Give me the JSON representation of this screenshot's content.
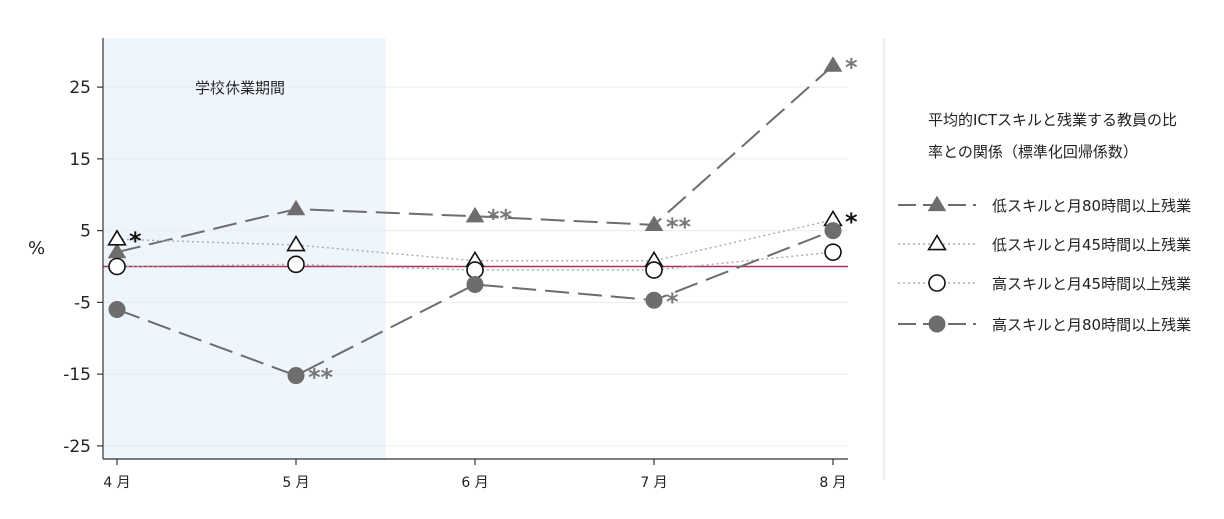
{
  "chart_data": {
    "type": "line",
    "ylabel": "%",
    "ylim": [
      -28,
      32
    ],
    "yticks": [
      -25,
      -15,
      -5,
      5,
      15,
      25
    ],
    "categories": [
      "4 月",
      "5 月",
      "6 月",
      "7 月",
      "8 月"
    ],
    "grid": true,
    "legend_position": "right",
    "legend_title_lines": [
      "平均的ICTスキルと残業する教員の比",
      "率との関係（標準化回帰係数）"
    ],
    "shaded_region": {
      "label": "学校休業期間",
      "x_start": -0.08,
      "x_end": 1.5,
      "color": "#eef5fc"
    },
    "reference_line": {
      "y": 0,
      "color": "#b03050"
    },
    "series": [
      {
        "name": "低スキルと月80時間以上残業",
        "marker": "filled-triangle",
        "line": "dashed",
        "color": "#6d6d6d",
        "values": [
          2,
          8,
          7,
          5.8,
          28
        ],
        "significance": [
          "",
          "",
          "**",
          "**",
          "*"
        ]
      },
      {
        "name": "低スキルと月45時間以上残業",
        "marker": "open-triangle",
        "line": "dotted",
        "color": "#aaaaaa",
        "values": [
          3.8,
          3,
          0.8,
          0.8,
          6.5
        ],
        "significance": [
          "*",
          "",
          "",
          "",
          "*"
        ]
      },
      {
        "name": "高スキルと月45時間以上残業",
        "marker": "open-circle",
        "line": "dotted",
        "color": "#aaaaaa",
        "values": [
          0,
          0.3,
          -0.5,
          -0.5,
          2
        ],
        "significance": [
          "",
          "",
          "",
          "",
          ""
        ]
      },
      {
        "name": "高スキルと月80時間以上残業",
        "marker": "filled-circle",
        "line": "dashed",
        "color": "#6d6d6d",
        "values": [
          -6,
          -15.2,
          -2.5,
          -4.7,
          5
        ],
        "significance": [
          "",
          "**",
          "",
          "*",
          ""
        ]
      }
    ]
  }
}
